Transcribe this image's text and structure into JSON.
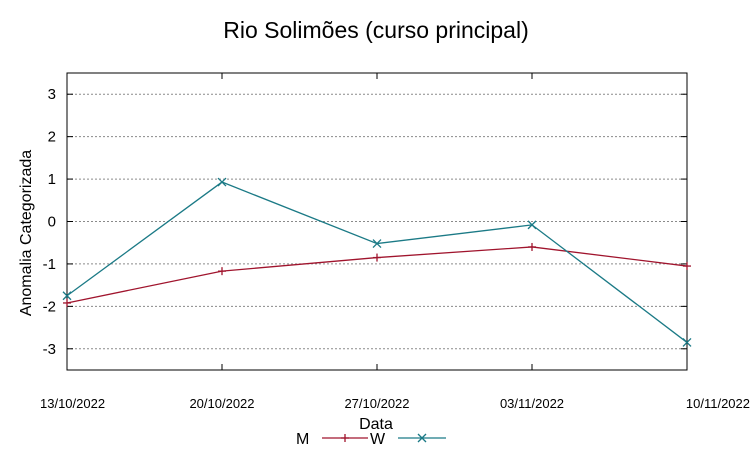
{
  "chart_data": {
    "type": "line",
    "title": "Rio Solimões (curso principal)",
    "xlabel": "Data",
    "ylabel": "Anomalia Categorizada",
    "categories": [
      "13/10/2022",
      "20/10/2022",
      "27/10/2022",
      "03/11/2022",
      "10/11/2022"
    ],
    "ylim": [
      -3.5,
      3.5
    ],
    "yticks": [
      -3,
      -2,
      -1,
      0,
      1,
      2,
      3
    ],
    "grid": true,
    "legend_position": "bottom",
    "series": [
      {
        "name": "M",
        "values": [
          -1.92,
          -1.17,
          -0.85,
          -0.6,
          -1.05
        ],
        "color": "#a0142d",
        "marker": "plus"
      },
      {
        "name": "W",
        "values": [
          -1.75,
          0.93,
          -0.52,
          -0.08,
          -2.85
        ],
        "color": "#1b7a86",
        "marker": "cross"
      }
    ]
  }
}
